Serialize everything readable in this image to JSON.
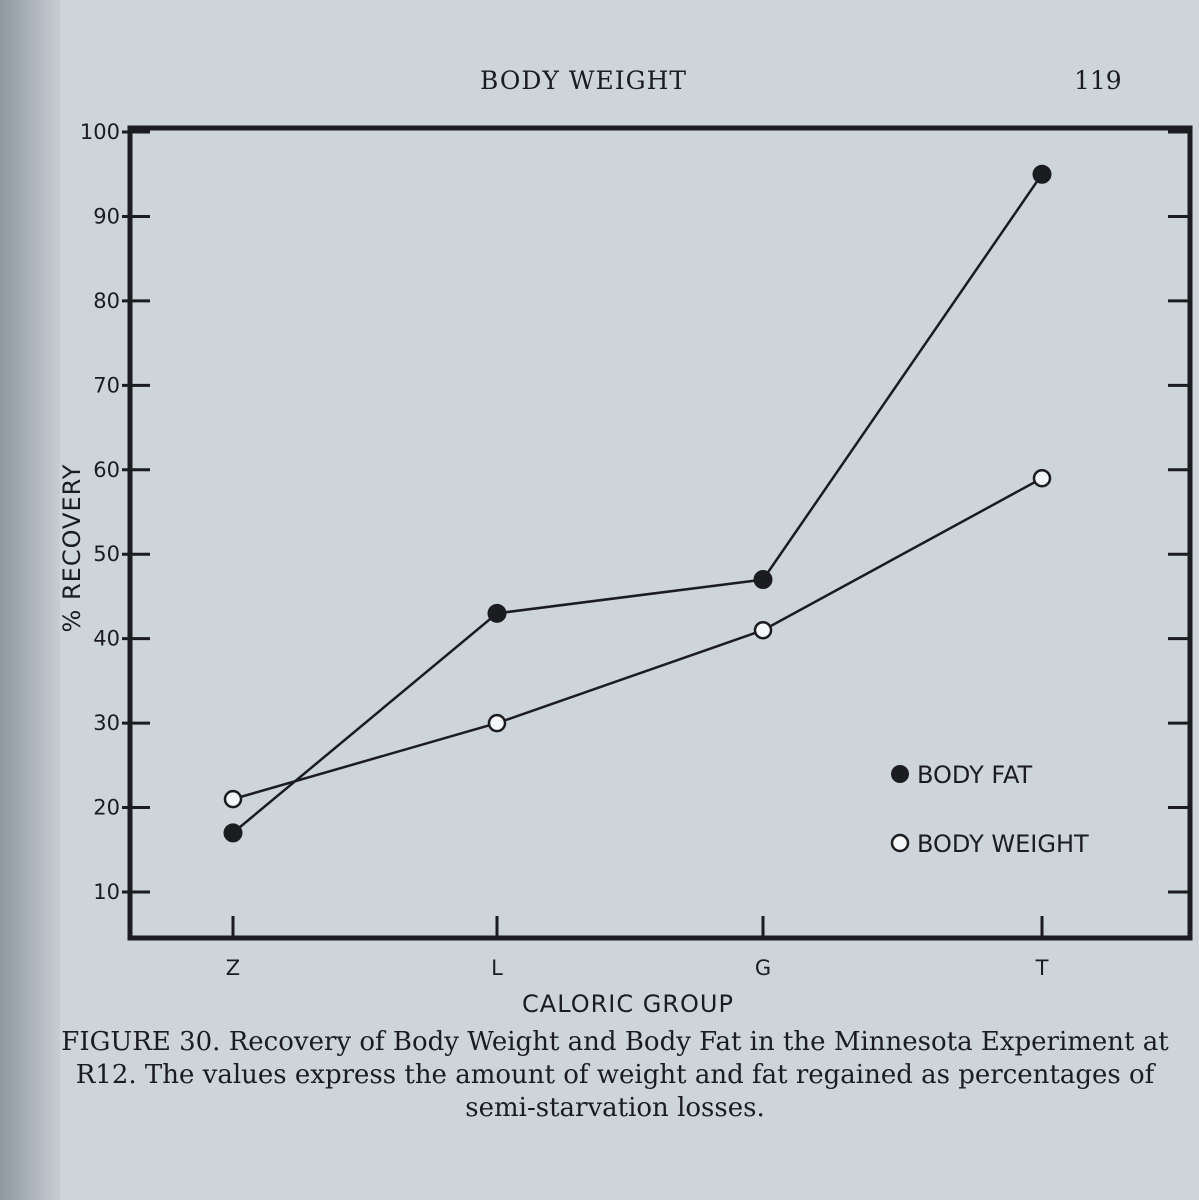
{
  "header": {
    "running_head": "BODY WEIGHT",
    "page_number": "119"
  },
  "caption": {
    "label": "FIGURE 30.",
    "text": "Recovery of Body Weight and Body Fat in the Minnesota Experiment at R12. The values express the amount of weight and fat regained as percentages of semi-starvation losses."
  },
  "chart_data": {
    "type": "line",
    "title": "",
    "xlabel": "CALORIC GROUP",
    "ylabel": "% RECOVERY",
    "categories": [
      "Z",
      "L",
      "G",
      "T"
    ],
    "y_ticks": [
      "10",
      "20",
      "30",
      "40",
      "50",
      "60",
      "70",
      "80",
      "90",
      "100"
    ],
    "ylim": [
      5,
      100
    ],
    "grid": false,
    "legend_position": "bottom-right",
    "series": [
      {
        "name": "BODY FAT",
        "marker": "filled-circle",
        "values": [
          17,
          43,
          47,
          95
        ]
      },
      {
        "name": "BODY WEIGHT",
        "marker": "open-circle",
        "values": [
          21,
          30,
          41,
          59
        ]
      }
    ]
  }
}
